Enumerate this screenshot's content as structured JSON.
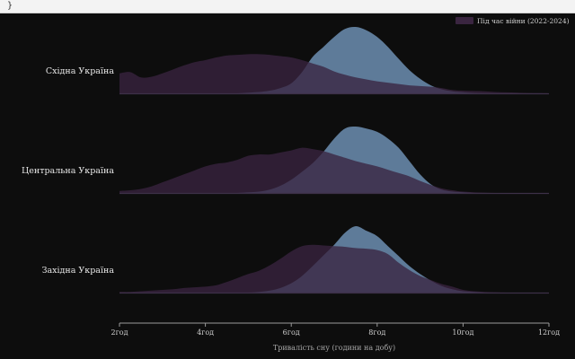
{
  "code_strip": {
    "text": "}"
  },
  "chart_data": {
    "type": "ridgeline",
    "xlabel": "Тривалість сну (години на добу)",
    "xlim": [
      2,
      12
    ],
    "x_ticks": [
      2,
      4,
      6,
      8,
      10,
      12
    ],
    "x_tick_labels": [
      "2год",
      "4год",
      "6год",
      "8год",
      "10год",
      "12год"
    ],
    "legend": [
      {
        "label": "Під час війни (2022-2024)",
        "color": "#3a2540"
      }
    ],
    "series_styles": {
      "before": {
        "fill": "#6d8fb3",
        "opacity": 0.85
      },
      "during": {
        "fill": "#3a2440",
        "opacity": 0.78
      }
    },
    "x": [
      2,
      2.25,
      2.5,
      2.75,
      3,
      3.25,
      3.5,
      3.75,
      4,
      4.25,
      4.5,
      4.75,
      5,
      5.25,
      5.5,
      5.75,
      6,
      6.25,
      6.5,
      6.75,
      7,
      7.25,
      7.5,
      7.75,
      8,
      8.25,
      8.5,
      8.75,
      9,
      9.25,
      9.5,
      9.75,
      10,
      10.25,
      10.5,
      10.75,
      11,
      11.25,
      11.5,
      11.75,
      12
    ],
    "ridges": [
      {
        "name": "Східна Україна",
        "before": [
          0,
          0,
          0,
          0,
          0,
          0,
          0,
          0,
          0,
          0,
          0,
          0,
          0.01,
          0.02,
          0.04,
          0.08,
          0.15,
          0.32,
          0.55,
          0.7,
          0.85,
          0.97,
          1.0,
          0.95,
          0.85,
          0.7,
          0.52,
          0.35,
          0.22,
          0.12,
          0.06,
          0.03,
          0.015,
          0.005,
          0,
          0,
          0,
          0,
          0,
          0,
          0
        ],
        "during": [
          0.3,
          0.32,
          0.24,
          0.25,
          0.3,
          0.36,
          0.42,
          0.47,
          0.5,
          0.54,
          0.57,
          0.58,
          0.59,
          0.59,
          0.58,
          0.56,
          0.54,
          0.5,
          0.45,
          0.4,
          0.33,
          0.28,
          0.24,
          0.21,
          0.18,
          0.16,
          0.14,
          0.12,
          0.11,
          0.1,
          0.08,
          0.05,
          0.04,
          0.035,
          0.03,
          0.02,
          0.015,
          0.01,
          0.005,
          0.003,
          0
        ]
      },
      {
        "name": "Центральна Україна",
        "before": [
          0,
          0,
          0,
          0,
          0,
          0,
          0,
          0,
          0,
          0,
          0,
          0,
          0.01,
          0.02,
          0.05,
          0.11,
          0.2,
          0.32,
          0.45,
          0.62,
          0.82,
          0.97,
          1.0,
          0.97,
          0.92,
          0.82,
          0.68,
          0.48,
          0.28,
          0.13,
          0.05,
          0.02,
          0.01,
          0,
          0,
          0,
          0,
          0,
          0,
          0,
          0
        ],
        "during": [
          0.03,
          0.04,
          0.06,
          0.1,
          0.16,
          0.22,
          0.28,
          0.34,
          0.4,
          0.44,
          0.46,
          0.5,
          0.56,
          0.58,
          0.58,
          0.61,
          0.64,
          0.68,
          0.66,
          0.63,
          0.58,
          0.53,
          0.48,
          0.44,
          0.4,
          0.35,
          0.3,
          0.25,
          0.18,
          0.12,
          0.07,
          0.04,
          0.02,
          0.01,
          0.005,
          0,
          0,
          0,
          0,
          0,
          0
        ]
      },
      {
        "name": "Західна Україна",
        "before": [
          0,
          0,
          0,
          0,
          0,
          0,
          0,
          0,
          0,
          0,
          0,
          0,
          0,
          0.01,
          0.03,
          0.07,
          0.14,
          0.25,
          0.4,
          0.56,
          0.72,
          0.9,
          1.0,
          0.93,
          0.85,
          0.7,
          0.55,
          0.4,
          0.28,
          0.18,
          0.1,
          0.05,
          0.02,
          0.01,
          0,
          0,
          0,
          0,
          0,
          0,
          0
        ],
        "during": [
          0.01,
          0.01,
          0.02,
          0.03,
          0.04,
          0.05,
          0.07,
          0.08,
          0.09,
          0.11,
          0.16,
          0.22,
          0.28,
          0.33,
          0.41,
          0.51,
          0.62,
          0.7,
          0.72,
          0.71,
          0.7,
          0.69,
          0.67,
          0.66,
          0.64,
          0.58,
          0.45,
          0.34,
          0.25,
          0.19,
          0.13,
          0.09,
          0.04,
          0.02,
          0.01,
          0.005,
          0,
          0,
          0,
          0,
          0
        ]
      }
    ]
  }
}
